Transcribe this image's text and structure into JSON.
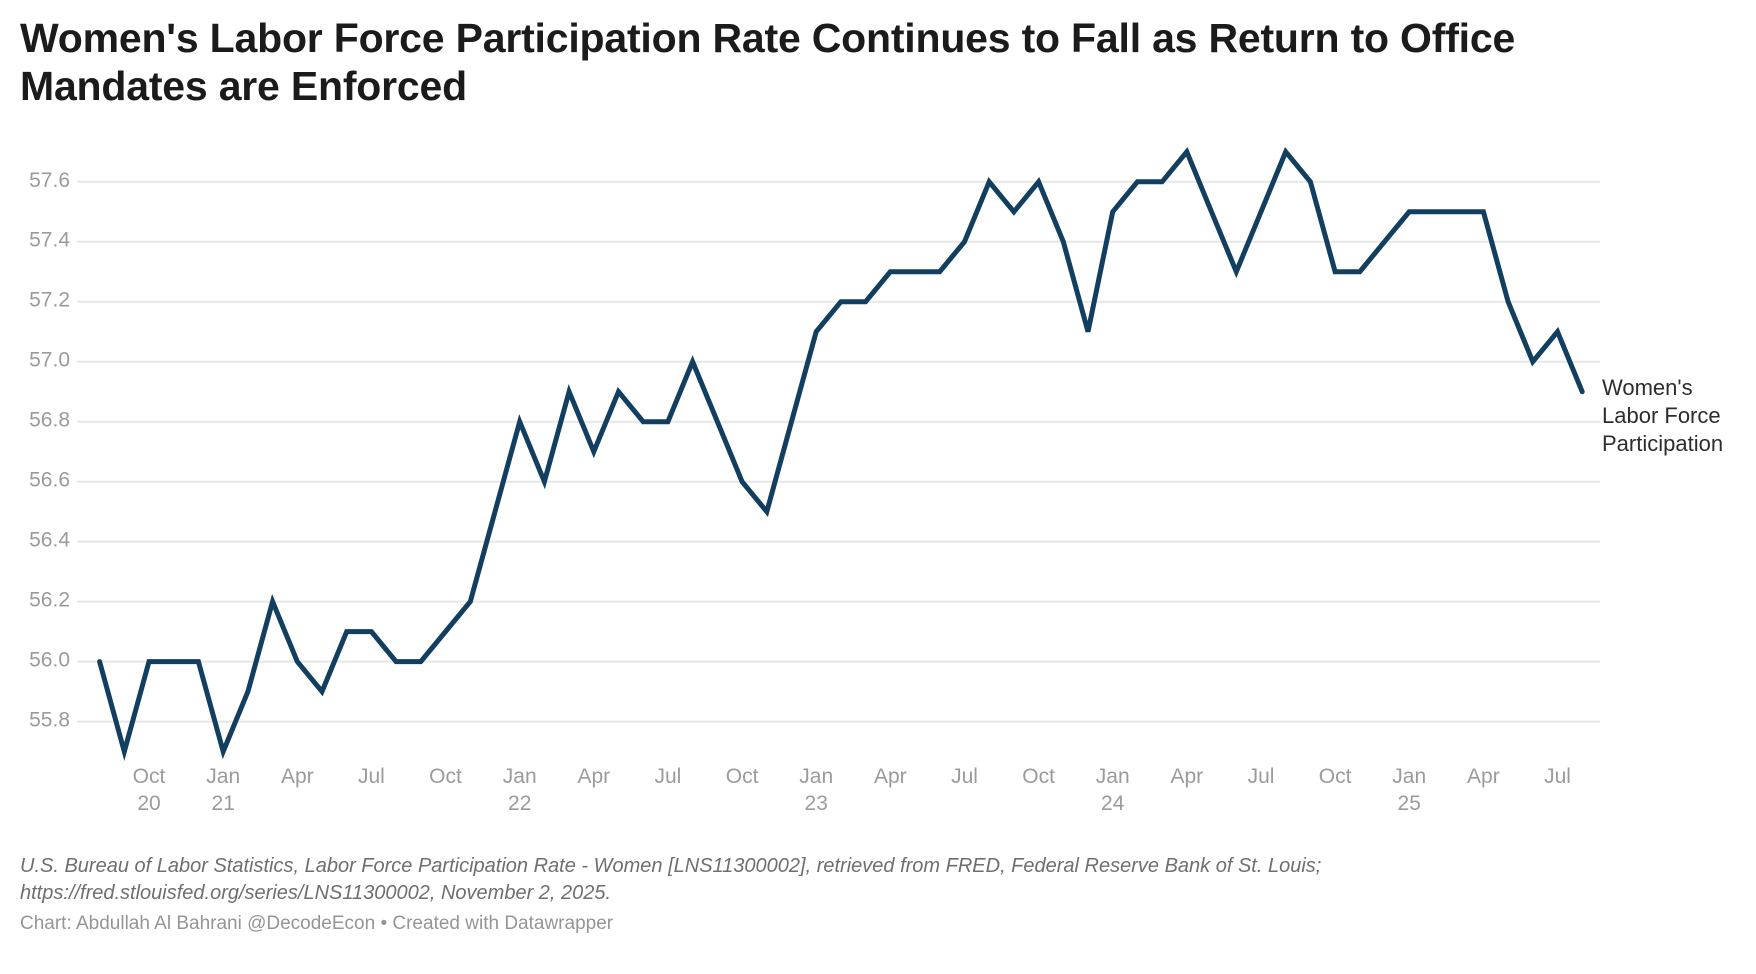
{
  "header": {
    "lines": [
      "Women's Labor Force Participation Rate Continues to Fall as Return to Office",
      "Mandates are Enforced"
    ]
  },
  "series_label": {
    "lines": [
      "Women's",
      "Labor Force",
      "Participation"
    ]
  },
  "source": {
    "lines": [
      "U.S. Bureau of Labor Statistics, Labor Force Participation Rate - Women [LNS11300002], retrieved from FRED, Federal Reserve Bank of St. Louis;",
      "https://fred.stlouisfed.org/series/LNS11300002, November 2, 2025."
    ]
  },
  "byline": "Chart: Abdullah Al Bahrani @DecodeEcon • Created with Datawrapper",
  "colors": {
    "line": "#123f5f",
    "grid": "#e7e7e7",
    "axis_text": "#9b9b9b",
    "title_text": "#1b1b1b",
    "series_label_text": "#2d2d2d",
    "source_text": "#6f6f6f",
    "byline_text": "#959595",
    "background": "#ffffff"
  },
  "chart_data": {
    "type": "line",
    "title": "Women's Labor Force Participation Rate Continues to Fall as Return to Office Mandates are Enforced",
    "xlabel": "",
    "ylabel": "",
    "grid": true,
    "legend_position": "right-of-line-end",
    "x_start": "2020-08",
    "x_end": "2025-08",
    "frequency": "monthly",
    "ylim": [
      55.65,
      57.78
    ],
    "y_ticks": [
      57.6,
      57.4,
      57.2,
      57.0,
      56.8,
      56.6,
      56.4,
      56.2,
      56.0,
      55.8
    ],
    "x_tick_start_index": 2,
    "x_tick_step_months": 3,
    "x_ticks": [
      {
        "m": "Oct",
        "y": "20"
      },
      {
        "m": "Jan",
        "y": "21"
      },
      {
        "m": "Apr"
      },
      {
        "m": "Jul"
      },
      {
        "m": "Oct"
      },
      {
        "m": "Jan",
        "y": "22"
      },
      {
        "m": "Apr"
      },
      {
        "m": "Jul"
      },
      {
        "m": "Oct"
      },
      {
        "m": "Jan",
        "y": "23"
      },
      {
        "m": "Apr"
      },
      {
        "m": "Jul"
      },
      {
        "m": "Oct"
      },
      {
        "m": "Jan",
        "y": "24"
      },
      {
        "m": "Apr"
      },
      {
        "m": "Jul"
      },
      {
        "m": "Oct"
      },
      {
        "m": "Jan",
        "y": "25"
      },
      {
        "m": "Apr"
      },
      {
        "m": "Jul"
      }
    ],
    "series": [
      {
        "name": "Women's Labor Force Participation",
        "start_month": "2020-08",
        "values": [
          56.0,
          55.7,
          56.0,
          56.0,
          56.0,
          55.7,
          55.9,
          56.2,
          56.0,
          55.9,
          56.1,
          56.1,
          56.0,
          56.0,
          56.1,
          56.2,
          56.5,
          56.8,
          56.6,
          56.9,
          56.7,
          56.9,
          56.8,
          56.8,
          57.0,
          56.8,
          56.6,
          56.5,
          56.8,
          57.1,
          57.2,
          57.2,
          57.3,
          57.3,
          57.3,
          57.4,
          57.6,
          57.5,
          57.6,
          57.4,
          57.1,
          57.5,
          57.6,
          57.6,
          57.7,
          57.5,
          57.3,
          57.5,
          57.7,
          57.6,
          57.3,
          57.3,
          57.4,
          57.5,
          57.5,
          57.5,
          57.5,
          57.2,
          57.0,
          57.1,
          56.9
        ]
      }
    ]
  }
}
